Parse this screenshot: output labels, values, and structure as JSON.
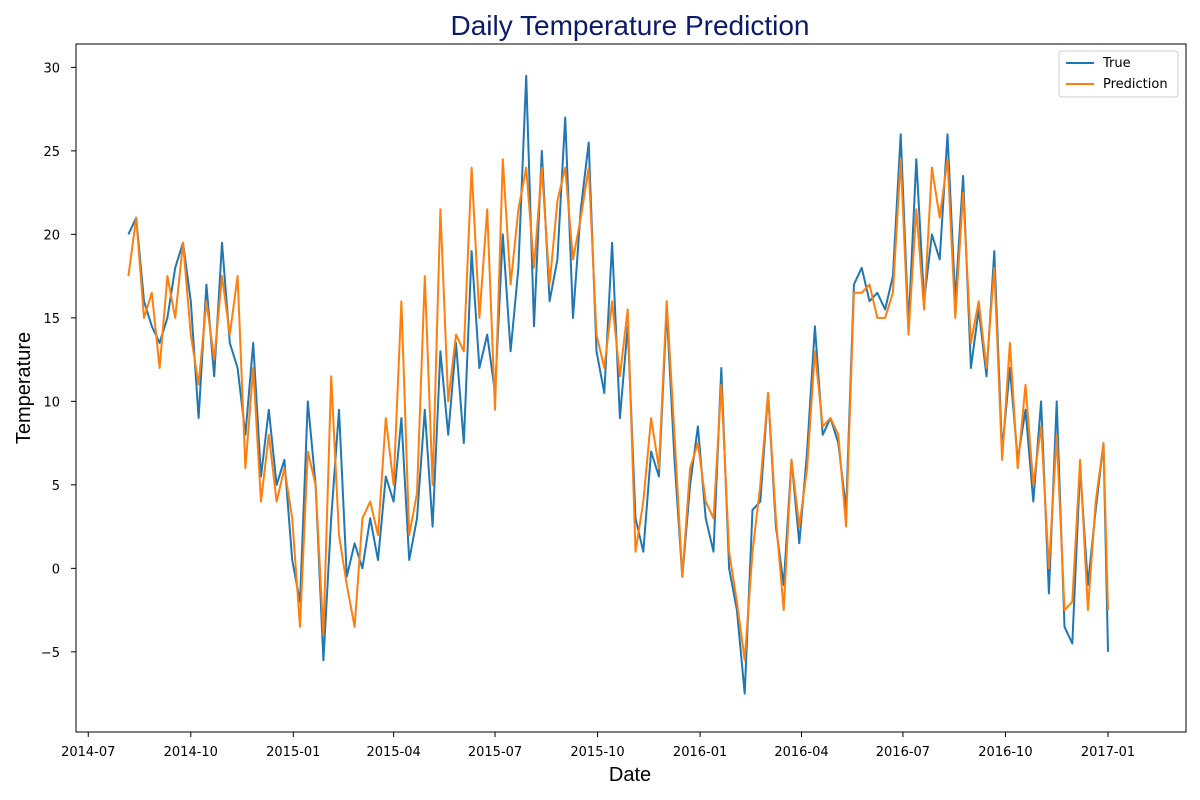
{
  "chart_data": {
    "type": "line",
    "title": "Daily Temperature Prediction",
    "xlabel": "Date",
    "ylabel": "Temperature",
    "xlim": [
      "2014-06-20",
      "2017-03-12"
    ],
    "ylim": [
      -9.8,
      31.4
    ],
    "y_ticks": [
      -5,
      0,
      5,
      10,
      15,
      20,
      25,
      30
    ],
    "y_tick_labels": [
      "−5",
      "0",
      "5",
      "10",
      "15",
      "20",
      "25",
      "30"
    ],
    "x_ticks": [
      "2014-07-01",
      "2014-10-01",
      "2015-01-01",
      "2015-04-01",
      "2015-07-01",
      "2015-10-01",
      "2016-01-01",
      "2016-04-01",
      "2016-07-01",
      "2016-10-01",
      "2017-01-01"
    ],
    "x_tick_labels": [
      "2014-07",
      "2014-10",
      "2015-01",
      "2015-04",
      "2015-07",
      "2015-10",
      "2016-01",
      "2016-04",
      "2016-07",
      "2016-10",
      "2017-01"
    ],
    "grid": false,
    "legend_position": "top-right",
    "colors": {
      "True": "#1f77b4",
      "Prediction": "#ff7f0e",
      "title": "#0b1a6b"
    },
    "series": [
      {
        "name": "True",
        "x": [
          "2014-08-06",
          "2014-08-13",
          "2014-08-20",
          "2014-08-27",
          "2014-09-03",
          "2014-09-10",
          "2014-09-17",
          "2014-09-24",
          "2014-10-01",
          "2014-10-08",
          "2014-10-15",
          "2014-10-22",
          "2014-10-29",
          "2014-11-05",
          "2014-11-12",
          "2014-11-19",
          "2014-11-26",
          "2014-12-03",
          "2014-12-10",
          "2014-12-17",
          "2014-12-24",
          "2014-12-31",
          "2015-01-07",
          "2015-01-14",
          "2015-01-21",
          "2015-01-28",
          "2015-02-04",
          "2015-02-11",
          "2015-02-18",
          "2015-02-25",
          "2015-03-04",
          "2015-03-11",
          "2015-03-18",
          "2015-03-25",
          "2015-04-01",
          "2015-04-08",
          "2015-04-15",
          "2015-04-22",
          "2015-04-29",
          "2015-05-06",
          "2015-05-13",
          "2015-05-20",
          "2015-05-27",
          "2015-06-03",
          "2015-06-10",
          "2015-06-17",
          "2015-06-24",
          "2015-07-01",
          "2015-07-08",
          "2015-07-15",
          "2015-07-22",
          "2015-07-29",
          "2015-08-05",
          "2015-08-12",
          "2015-08-19",
          "2015-08-26",
          "2015-09-02",
          "2015-09-09",
          "2015-09-16",
          "2015-09-23",
          "2015-09-30",
          "2015-10-07",
          "2015-10-14",
          "2015-10-21",
          "2015-10-28",
          "2015-11-04",
          "2015-11-11",
          "2015-11-18",
          "2015-11-25",
          "2015-12-02",
          "2015-12-09",
          "2015-12-16",
          "2015-12-23",
          "2015-12-30",
          "2016-01-06",
          "2016-01-13",
          "2016-01-20",
          "2016-01-27",
          "2016-02-03",
          "2016-02-10",
          "2016-02-17",
          "2016-02-24",
          "2016-03-02",
          "2016-03-09",
          "2016-03-16",
          "2016-03-23",
          "2016-03-30",
          "2016-04-06",
          "2016-04-13",
          "2016-04-20",
          "2016-04-27",
          "2016-05-04",
          "2016-05-11",
          "2016-05-18",
          "2016-05-25",
          "2016-06-01",
          "2016-06-08",
          "2016-06-15",
          "2016-06-22",
          "2016-06-29",
          "2016-07-06",
          "2016-07-13",
          "2016-07-20",
          "2016-07-27",
          "2016-08-03",
          "2016-08-10",
          "2016-08-17",
          "2016-08-24",
          "2016-08-31",
          "2016-09-07",
          "2016-09-14",
          "2016-09-21",
          "2016-09-28",
          "2016-10-05",
          "2016-10-12",
          "2016-10-19",
          "2016-10-26",
          "2016-11-02",
          "2016-11-09",
          "2016-11-16",
          "2016-11-23",
          "2016-11-30",
          "2016-12-07",
          "2016-12-14",
          "2016-12-21",
          "2016-12-28",
          "2017-01-01"
        ],
        "values": [
          20.0,
          21.0,
          16.0,
          14.5,
          13.5,
          15.0,
          18.0,
          19.5,
          16.0,
          9.0,
          17.0,
          11.5,
          19.5,
          13.5,
          12.0,
          8.0,
          13.5,
          5.5,
          9.5,
          5.0,
          6.5,
          0.5,
          -2.0,
          10.0,
          5.0,
          -5.5,
          3.0,
          9.5,
          -0.5,
          1.5,
          0.0,
          3.0,
          0.5,
          5.5,
          4.0,
          9.0,
          0.5,
          3.0,
          9.5,
          2.5,
          13.0,
          8.0,
          13.5,
          7.5,
          19.0,
          12.0,
          14.0,
          10.5,
          20.0,
          13.0,
          18.0,
          29.5,
          14.5,
          25.0,
          16.0,
          18.5,
          27.0,
          15.0,
          21.5,
          25.5,
          13.0,
          10.5,
          19.5,
          9.0,
          14.5,
          3.0,
          1.0,
          7.0,
          5.5,
          15.5,
          6.5,
          -0.5,
          5.0,
          8.5,
          3.0,
          1.0,
          12.0,
          0.0,
          -2.5,
          -7.5,
          3.5,
          4.0,
          10.5,
          2.5,
          -1.0,
          6.5,
          1.5,
          7.0,
          14.5,
          8.0,
          9.0,
          7.5,
          3.5,
          17.0,
          18.0,
          16.0,
          16.5,
          15.5,
          17.5,
          26.0,
          14.5,
          24.5,
          16.0,
          20.0,
          18.5,
          26.0,
          16.0,
          23.5,
          12.0,
          15.5,
          11.5,
          19.0,
          7.0,
          12.0,
          6.5,
          9.5,
          4.0,
          10.0,
          -1.5,
          10.0,
          -3.5,
          -4.5,
          6.0,
          -1.0,
          3.5,
          7.5,
          -5.0
        ]
      },
      {
        "name": "Prediction",
        "x": [
          "2014-08-06",
          "2014-08-13",
          "2014-08-20",
          "2014-08-27",
          "2014-09-03",
          "2014-09-10",
          "2014-09-17",
          "2014-09-24",
          "2014-10-01",
          "2014-10-08",
          "2014-10-15",
          "2014-10-22",
          "2014-10-29",
          "2014-11-05",
          "2014-11-12",
          "2014-11-19",
          "2014-11-26",
          "2014-12-03",
          "2014-12-10",
          "2014-12-17",
          "2014-12-24",
          "2014-12-31",
          "2015-01-07",
          "2015-01-14",
          "2015-01-21",
          "2015-01-28",
          "2015-02-04",
          "2015-02-11",
          "2015-02-18",
          "2015-02-25",
          "2015-03-04",
          "2015-03-11",
          "2015-03-18",
          "2015-03-25",
          "2015-04-01",
          "2015-04-08",
          "2015-04-15",
          "2015-04-22",
          "2015-04-29",
          "2015-05-06",
          "2015-05-13",
          "2015-05-20",
          "2015-05-27",
          "2015-06-03",
          "2015-06-10",
          "2015-06-17",
          "2015-06-24",
          "2015-07-01",
          "2015-07-08",
          "2015-07-15",
          "2015-07-22",
          "2015-07-29",
          "2015-08-05",
          "2015-08-12",
          "2015-08-19",
          "2015-08-26",
          "2015-09-02",
          "2015-09-09",
          "2015-09-16",
          "2015-09-23",
          "2015-09-30",
          "2015-10-07",
          "2015-10-14",
          "2015-10-21",
          "2015-10-28",
          "2015-11-04",
          "2015-11-11",
          "2015-11-18",
          "2015-11-25",
          "2015-12-02",
          "2015-12-09",
          "2015-12-16",
          "2015-12-23",
          "2015-12-30",
          "2016-01-06",
          "2016-01-13",
          "2016-01-20",
          "2016-01-27",
          "2016-02-03",
          "2016-02-10",
          "2016-02-17",
          "2016-02-24",
          "2016-03-02",
          "2016-03-09",
          "2016-03-16",
          "2016-03-23",
          "2016-03-30",
          "2016-04-06",
          "2016-04-13",
          "2016-04-20",
          "2016-04-27",
          "2016-05-04",
          "2016-05-11",
          "2016-05-18",
          "2016-05-25",
          "2016-06-01",
          "2016-06-08",
          "2016-06-15",
          "2016-06-22",
          "2016-06-29",
          "2016-07-06",
          "2016-07-13",
          "2016-07-20",
          "2016-07-27",
          "2016-08-03",
          "2016-08-10",
          "2016-08-17",
          "2016-08-24",
          "2016-08-31",
          "2016-09-07",
          "2016-09-14",
          "2016-09-21",
          "2016-09-28",
          "2016-10-05",
          "2016-10-12",
          "2016-10-19",
          "2016-10-26",
          "2016-11-02",
          "2016-11-09",
          "2016-11-16",
          "2016-11-23",
          "2016-11-30",
          "2016-12-07",
          "2016-12-14",
          "2016-12-21",
          "2016-12-28",
          "2017-01-01"
        ],
        "values": [
          17.5,
          21.0,
          15.0,
          16.5,
          12.0,
          17.5,
          15.0,
          19.5,
          14.0,
          11.0,
          16.0,
          12.5,
          17.5,
          14.0,
          17.5,
          6.0,
          12.0,
          4.0,
          8.0,
          4.0,
          6.0,
          3.0,
          -3.5,
          7.0,
          5.0,
          -4.0,
          11.5,
          2.0,
          -1.0,
          -3.5,
          3.0,
          4.0,
          2.0,
          9.0,
          5.0,
          16.0,
          2.0,
          4.5,
          17.5,
          5.0,
          21.5,
          10.0,
          14.0,
          13.0,
          24.0,
          15.0,
          21.5,
          9.5,
          24.5,
          17.0,
          21.5,
          24.0,
          18.0,
          24.0,
          17.0,
          22.0,
          24.0,
          18.5,
          21.0,
          24.0,
          14.0,
          12.0,
          16.0,
          11.5,
          15.5,
          1.0,
          4.0,
          9.0,
          6.0,
          16.0,
          8.0,
          -0.5,
          6.0,
          7.5,
          4.0,
          3.0,
          11.0,
          1.0,
          -2.0,
          -5.5,
          1.0,
          5.0,
          10.5,
          3.0,
          -2.5,
          6.5,
          2.5,
          6.0,
          13.0,
          8.5,
          9.0,
          8.0,
          2.5,
          16.5,
          16.5,
          17.0,
          15.0,
          15.0,
          16.5,
          24.5,
          14.0,
          21.5,
          15.5,
          24.0,
          21.0,
          24.5,
          15.0,
          22.5,
          13.5,
          16.0,
          12.0,
          18.0,
          6.5,
          13.5,
          6.0,
          11.0,
          5.0,
          8.5,
          0.0,
          8.0,
          -2.5,
          -2.0,
          6.5,
          -2.5,
          4.0,
          7.5,
          -2.5
        ]
      }
    ]
  }
}
